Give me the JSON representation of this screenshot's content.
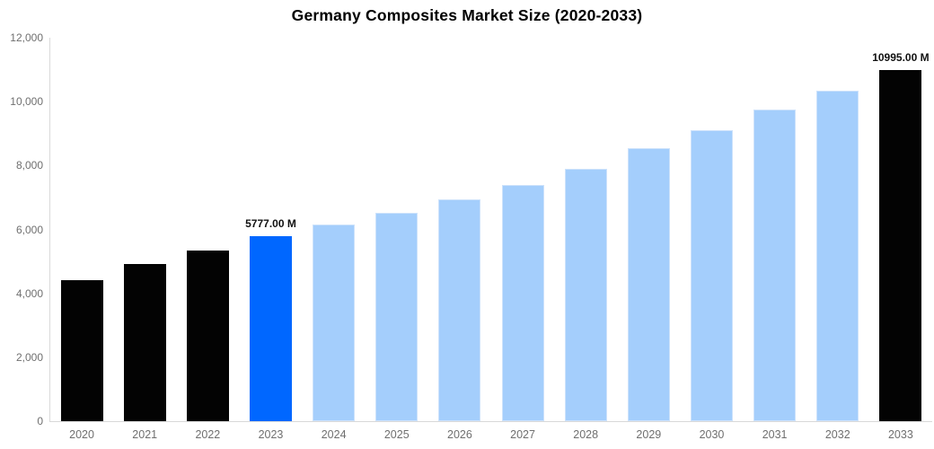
{
  "title": "Germany Composites Market Size (2020-2033)",
  "colors": {
    "background": "#ffffff",
    "title_text": "#000000",
    "axis_line": "#d9d9d9",
    "axis_tick_text": "#6f6f6f",
    "data_label_text": "#111111",
    "historical_bar": "#030303",
    "current_year_bar": "#0067ff",
    "forecast_bar": "#a4cefc",
    "forecast_bar_border": "#cde2fb"
  },
  "y_axis": {
    "max": 12000,
    "ticks": [
      {
        "value": 12000,
        "label": "12,000"
      },
      {
        "value": 10000,
        "label": "10,000"
      },
      {
        "value": 8000,
        "label": "8,000"
      },
      {
        "value": 6000,
        "label": "6,000"
      },
      {
        "value": 4000,
        "label": "4,000"
      },
      {
        "value": 2000,
        "label": "2,000"
      },
      {
        "value": 0,
        "label": "0"
      }
    ]
  },
  "chart_data": {
    "type": "bar",
    "title": "Germany Composites Market Size (2020-2033)",
    "unit": "M",
    "xlabel": "",
    "ylabel": "",
    "ylim": [
      0,
      12000
    ],
    "grid": false,
    "legend": false,
    "categories": [
      "2020",
      "2021",
      "2022",
      "2023",
      "2024",
      "2025",
      "2026",
      "2027",
      "2028",
      "2029",
      "2030",
      "2031",
      "2032",
      "2033"
    ],
    "values": [
      4425,
      4905,
      5330,
      5777,
      6155,
      6525,
      6940,
      7400,
      7910,
      8535,
      9105,
      9755,
      10350,
      10995
    ],
    "bars": [
      {
        "year": "2020",
        "value": 4425,
        "color": "historical_bar"
      },
      {
        "year": "2021",
        "value": 4905,
        "color": "historical_bar"
      },
      {
        "year": "2022",
        "value": 5330,
        "color": "historical_bar"
      },
      {
        "year": "2023",
        "value": 5777,
        "color": "current_year_bar",
        "data_label": "5777.00 M"
      },
      {
        "year": "2024",
        "value": 6155,
        "color": "forecast_bar"
      },
      {
        "year": "2025",
        "value": 6525,
        "color": "forecast_bar"
      },
      {
        "year": "2026",
        "value": 6940,
        "color": "forecast_bar"
      },
      {
        "year": "2027",
        "value": 7400,
        "color": "forecast_bar"
      },
      {
        "year": "2028",
        "value": 7910,
        "color": "forecast_bar"
      },
      {
        "year": "2029",
        "value": 8535,
        "color": "forecast_bar"
      },
      {
        "year": "2030",
        "value": 9105,
        "color": "forecast_bar"
      },
      {
        "year": "2031",
        "value": 9755,
        "color": "forecast_bar"
      },
      {
        "year": "2032",
        "value": 10350,
        "color": "forecast_bar"
      },
      {
        "year": "2033",
        "value": 10995,
        "color": "historical_bar",
        "data_label": "10995.00 M"
      }
    ]
  }
}
